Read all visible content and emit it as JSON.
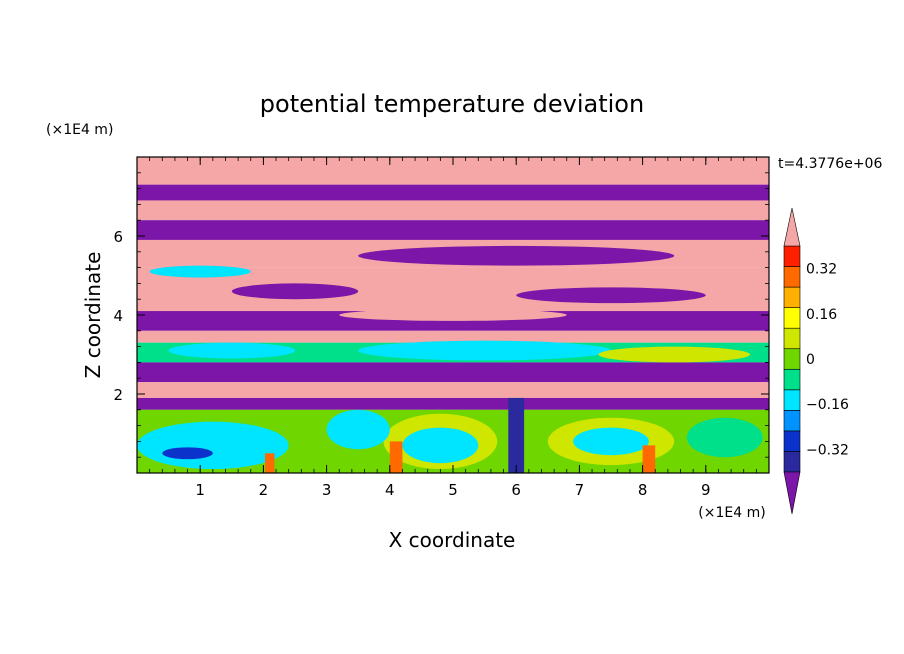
{
  "chart_data": {
    "type": "heatmap",
    "title": "potential temperature deviation",
    "xlabel": "X coordinate",
    "ylabel": "Z coordinate",
    "x_unit": "(×1E4 m)",
    "y_unit": "(×1E4 m)",
    "time_label": "t=4.3776e+06",
    "xlim": [
      0,
      10
    ],
    "ylim": [
      0,
      8
    ],
    "x_ticks": [
      "1",
      "2",
      "3",
      "4",
      "5",
      "6",
      "7",
      "8",
      "9"
    ],
    "y_ticks": [
      "2",
      "4",
      "6"
    ],
    "colorbar": {
      "labels": [
        "0.32",
        "0.16",
        "0",
        "−0.16",
        "−0.32"
      ],
      "label_values": [
        0.32,
        0.16,
        0,
        -0.16,
        -0.32
      ],
      "levels": [
        -0.4,
        -0.32,
        -0.24,
        -0.16,
        -0.08,
        0,
        0.08,
        0.16,
        0.24,
        0.32,
        0.4
      ],
      "colors": [
        "#7b16a8",
        "#2a2a9e",
        "#0b33cc",
        "#0093ff",
        "#00e5ff",
        "#00e08a",
        "#6fd600",
        "#cfe600",
        "#ffff00",
        "#ffb000",
        "#ff6a00",
        "#ff2000",
        "#f5a6a6"
      ],
      "extend": "both"
    },
    "bands": [
      {
        "z": [
          7.3,
          8.0
        ],
        "color": "#f5a6a6"
      },
      {
        "z": [
          6.9,
          7.3
        ],
        "color": "#7b16a8"
      },
      {
        "z": [
          6.4,
          6.9
        ],
        "color": "#f5a6a6"
      },
      {
        "z": [
          5.9,
          6.4
        ],
        "color": "#7b16a8"
      },
      {
        "z": [
          5.2,
          5.9
        ],
        "color": "#f5a6a6"
      },
      {
        "z": [
          4.1,
          5.2
        ],
        "color": "#f5a6a6"
      },
      {
        "z": [
          3.6,
          4.1
        ],
        "color": "#7b16a8"
      },
      {
        "z": [
          3.3,
          3.6
        ],
        "color": "#f5a6a6"
      },
      {
        "z": [
          2.8,
          3.3
        ],
        "color": "#00e08a"
      },
      {
        "z": [
          2.3,
          2.8
        ],
        "color": "#7b16a8"
      },
      {
        "z": [
          1.9,
          2.3
        ],
        "color": "#f5a6a6"
      },
      {
        "z": [
          1.6,
          1.9
        ],
        "color": "#7b16a8"
      },
      {
        "z": [
          0,
          1.6
        ],
        "color": "#6fd600"
      }
    ],
    "features": [
      {
        "x": 1.2,
        "z": 0.7,
        "rx": 1.2,
        "rz": 0.6,
        "color": "#00e5ff"
      },
      {
        "x": 0.8,
        "z": 0.5,
        "rx": 0.4,
        "rz": 0.15,
        "color": "#0b33cc"
      },
      {
        "x": 4.8,
        "z": 0.8,
        "rx": 0.9,
        "rz": 0.7,
        "color": "#cfe600"
      },
      {
        "x": 4.8,
        "z": 0.7,
        "rx": 0.6,
        "rz": 0.45,
        "color": "#00e5ff"
      },
      {
        "x": 7.5,
        "z": 0.8,
        "rx": 1.0,
        "rz": 0.6,
        "color": "#cfe600"
      },
      {
        "x": 7.5,
        "z": 0.8,
        "rx": 0.6,
        "rz": 0.35,
        "color": "#00e5ff"
      },
      {
        "x": 3.5,
        "z": 1.1,
        "rx": 0.5,
        "rz": 0.5,
        "color": "#00e5ff"
      },
      {
        "x": 9.3,
        "z": 0.9,
        "rx": 0.6,
        "rz": 0.5,
        "color": "#00e08a"
      },
      {
        "x": 5.5,
        "z": 3.1,
        "rx": 2.0,
        "rz": 0.25,
        "color": "#00e5ff"
      },
      {
        "x": 8.5,
        "z": 3.0,
        "rx": 1.2,
        "rz": 0.2,
        "color": "#cfe600"
      },
      {
        "x": 1.5,
        "z": 3.1,
        "rx": 1.0,
        "rz": 0.2,
        "color": "#00e5ff"
      },
      {
        "x": 5.0,
        "z": 4.0,
        "rx": 1.8,
        "rz": 0.15,
        "color": "#f5a6a6"
      },
      {
        "x": 7.5,
        "z": 4.5,
        "rx": 1.5,
        "rz": 0.2,
        "color": "#7b16a8"
      },
      {
        "x": 2.5,
        "z": 4.6,
        "rx": 1.0,
        "rz": 0.2,
        "color": "#7b16a8"
      },
      {
        "x": 6.0,
        "z": 5.5,
        "rx": 2.5,
        "rz": 0.25,
        "color": "#7b16a8"
      },
      {
        "x": 1.0,
        "z": 5.1,
        "rx": 0.8,
        "rz": 0.15,
        "color": "#00e5ff"
      }
    ],
    "plumes": [
      {
        "x": 6.0,
        "z0": 0,
        "z1": 1.9,
        "w": 0.25,
        "color": "#2a2a9e"
      },
      {
        "x": 4.1,
        "z0": 0,
        "z1": 0.8,
        "w": 0.2,
        "color": "#ff6a00"
      },
      {
        "x": 2.1,
        "z0": 0,
        "z1": 0.5,
        "w": 0.15,
        "color": "#ff6a00"
      },
      {
        "x": 8.1,
        "z0": 0,
        "z1": 0.7,
        "w": 0.2,
        "color": "#ff6a00"
      }
    ]
  }
}
